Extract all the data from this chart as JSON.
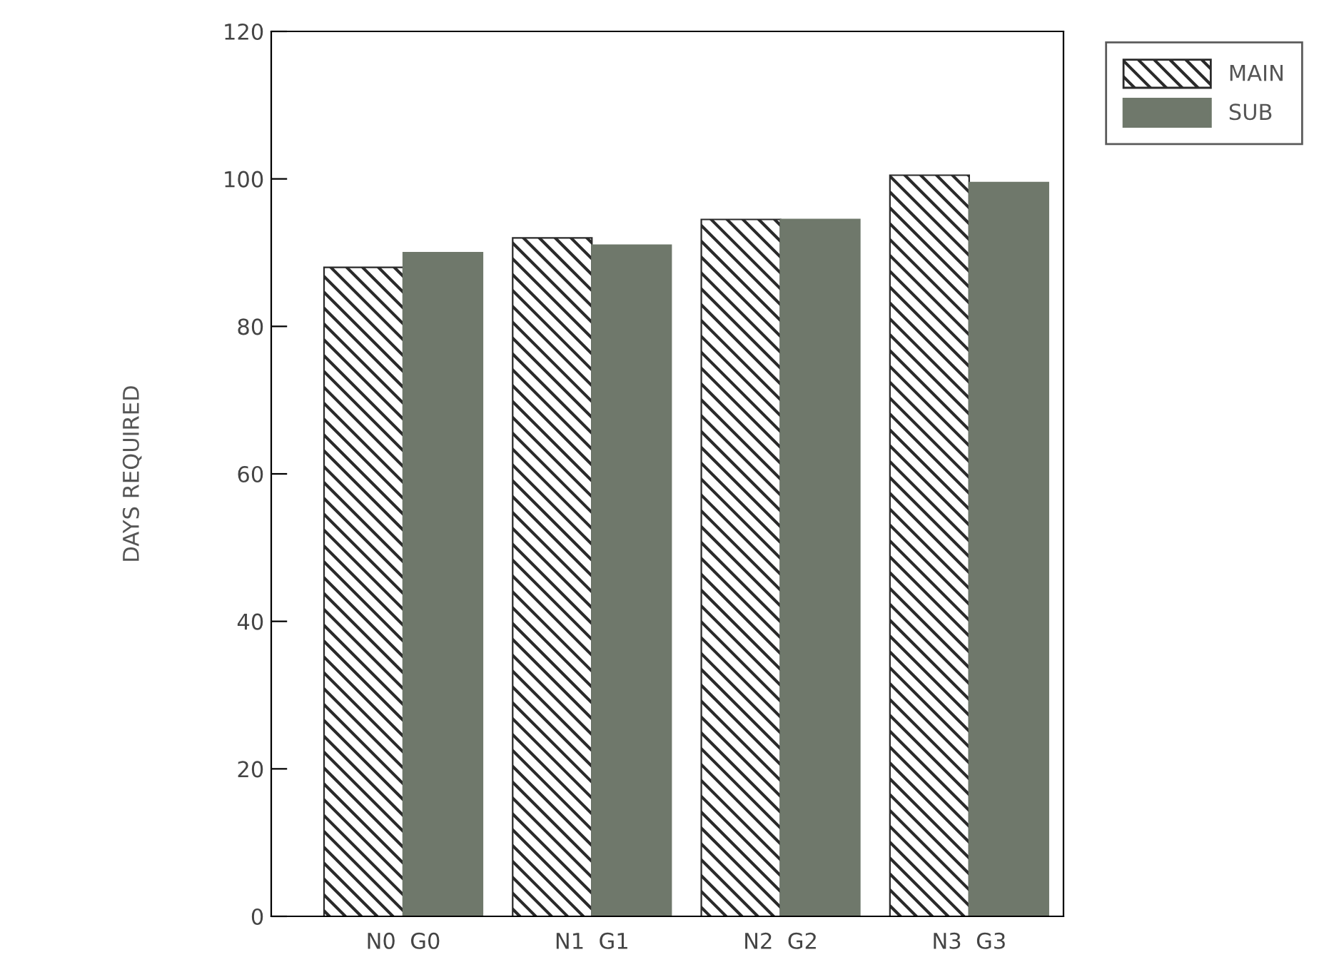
{
  "chart_data": {
    "type": "bar",
    "ylabel": "DAYS REQUIRED",
    "categories": [
      "N0  G0",
      "N1  G1",
      "N2  G2",
      "N3  G3"
    ],
    "series": [
      {
        "name": "MAIN",
        "color": "#2a2a2a",
        "values": [
          88,
          92,
          94.5,
          100.5
        ]
      },
      {
        "name": "SUB",
        "color": "#6f786b",
        "values": [
          90,
          91,
          94.5,
          99.5
        ]
      }
    ],
    "ylim": [
      0,
      120
    ],
    "yticks": [
      0,
      20,
      40,
      60,
      80,
      100,
      120
    ],
    "grid": false,
    "legend": "top right"
  }
}
